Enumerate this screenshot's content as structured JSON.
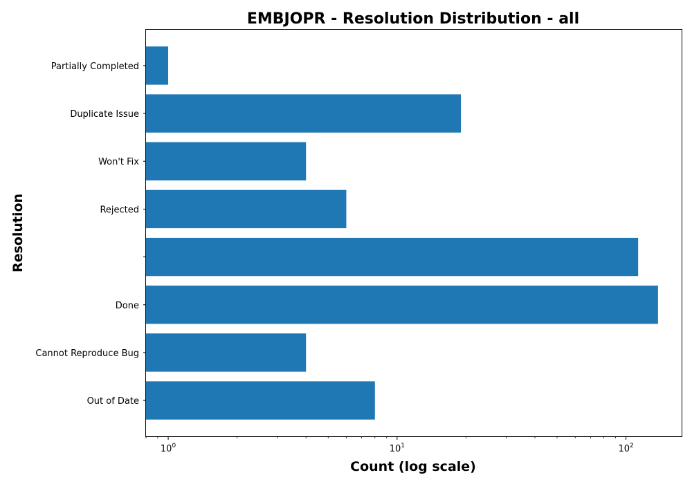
{
  "chart_data": {
    "type": "bar",
    "orientation": "horizontal",
    "title": "EMBJOPR - Resolution Distribution - all",
    "xlabel": "Count (log scale)",
    "ylabel": "Resolution",
    "x_scale": "log",
    "xlim": [
      0.8,
      175
    ],
    "x_ticks": [
      {
        "value": 1,
        "base": "10",
        "exp": "0"
      },
      {
        "value": 10,
        "base": "10",
        "exp": "1"
      },
      {
        "value": 100,
        "base": "10",
        "exp": "2"
      }
    ],
    "categories": [
      "Partially Completed",
      "Duplicate Issue",
      "Won't Fix",
      "Rejected",
      "",
      "Done",
      "Cannot Reproduce Bug",
      "Out of Date"
    ],
    "values": [
      1,
      19,
      4,
      6,
      113,
      138,
      4,
      8
    ],
    "bar_color": "#1f77b4",
    "grid": false,
    "legend": "none"
  }
}
